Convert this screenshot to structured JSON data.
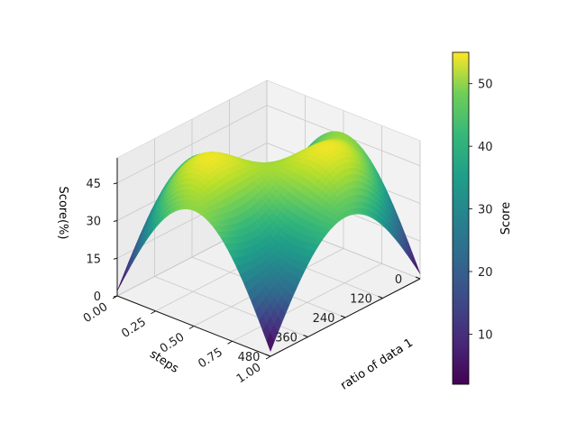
{
  "chart_data": {
    "type": "surface3d",
    "title": "",
    "zlabel": "Score(%)",
    "ylabel": "steps",
    "xlabel": "ratio of data 1",
    "xlim": [
      0,
      1
    ],
    "ylim": [
      0,
      480
    ],
    "zlim": [
      0,
      55
    ],
    "x_ticks": [
      "0.00",
      "0.25",
      "0.50",
      "0.75",
      "1.00"
    ],
    "y_ticks": [
      "0",
      "120",
      "240",
      "360",
      "480"
    ],
    "z_ticks": [
      "0",
      "15",
      "30",
      "45"
    ],
    "colormap": "viridis",
    "colorbar": {
      "label": "Score",
      "range": [
        2,
        55
      ],
      "ticks": [
        "10",
        "20",
        "30",
        "40",
        "50"
      ]
    },
    "grid": true,
    "surface_samples": {
      "x": [
        0.0,
        0.25,
        0.5,
        0.75,
        1.0
      ],
      "y": [
        0,
        120,
        240,
        360,
        480
      ],
      "z": [
        [
          2,
          40,
          46,
          40,
          2
        ],
        [
          38,
          36,
          35,
          36,
          38
        ],
        [
          52,
          41,
          34,
          41,
          52
        ],
        [
          38,
          36,
          35,
          36,
          38
        ],
        [
          2,
          40,
          46,
          40,
          2
        ]
      ]
    }
  }
}
